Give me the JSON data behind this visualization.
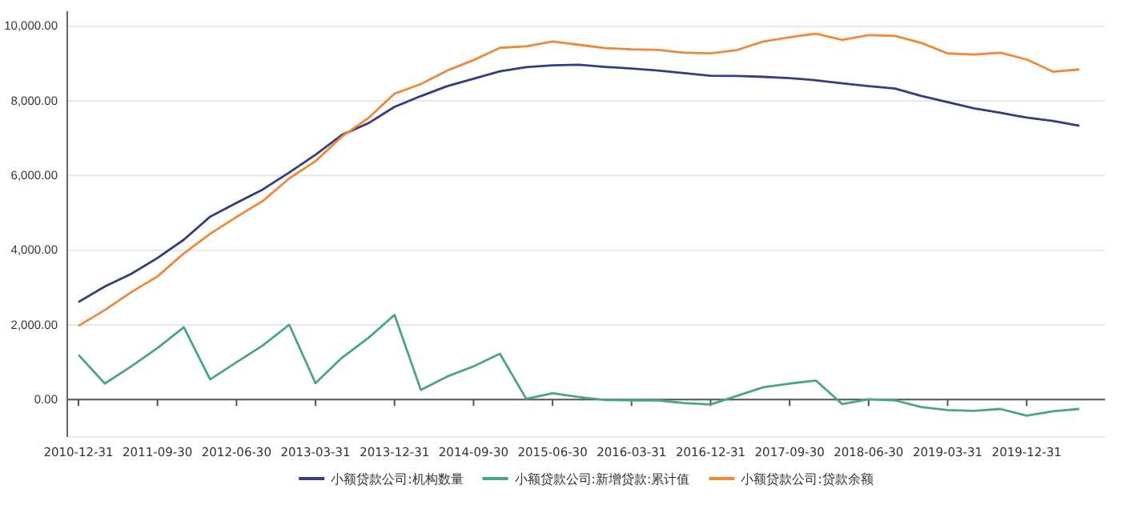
{
  "chart_data": {
    "type": "line",
    "categories": [
      "2010-12-31",
      null,
      null,
      "2011-09-30",
      null,
      null,
      "2012-06-30",
      null,
      null,
      "2013-03-31",
      null,
      null,
      "2013-12-31",
      null,
      null,
      "2014-09-30",
      null,
      null,
      "2015-06-30",
      null,
      null,
      "2016-03-31",
      null,
      null,
      "2016-12-31",
      null,
      null,
      "2017-09-30",
      null,
      null,
      "2018-06-30",
      null,
      null,
      "2019-03-31",
      null,
      null,
      "2019-12-31",
      null,
      null
    ],
    "series": [
      {
        "name": "小额贷款公司:机构数量",
        "color": "#333d7e",
        "values": [
          2614,
          3027,
          3366,
          3791,
          4282,
          4900,
          5267,
          5629,
          6080,
          6555,
          7086,
          7398,
          7839,
          8127,
          8394,
          8591,
          8791,
          8904,
          8951,
          8965,
          8910,
          8867,
          8810,
          8741,
          8673,
          8665,
          8643,
          8610,
          8551,
          8471,
          8394,
          8331,
          8133,
          7967,
          7797,
          7680,
          7551,
          7463,
          7333
        ]
      },
      {
        "name": "小额贷款公司:新增贷款:累计值",
        "color": "#4aa38f",
        "values": [
          1200,
          430,
          890,
          1380,
          1940,
          540,
          1000,
          1450,
          2005,
          440,
          1120,
          1650,
          2268,
          260,
          620,
          890,
          1228,
          20,
          170,
          70,
          -10,
          -20,
          -20,
          -90,
          -130,
          100,
          330,
          430,
          510,
          -120,
          10,
          -20,
          -200,
          -280,
          -300,
          -250,
          -430,
          -310,
          -250
        ]
      },
      {
        "name": "小额贷款公司:贷款余额",
        "color": "#f0883a",
        "values": [
          1975,
          2400,
          2875,
          3300,
          3915,
          4440,
          4890,
          5320,
          5921,
          6385,
          7043,
          7535,
          8191,
          8450,
          8811,
          9090,
          9420,
          9460,
          9590,
          9500,
          9412,
          9380,
          9365,
          9290,
          9273,
          9360,
          9590,
          9700,
          9799,
          9630,
          9760,
          9740,
          9550,
          9270,
          9240,
          9290,
          9109,
          8780,
          8841
        ]
      }
    ],
    "ylim": [
      -1000,
      10400
    ],
    "yticks": [
      {
        "value": -1000,
        "label": null
      },
      {
        "value": 0,
        "label": "0.00"
      },
      {
        "value": 2000,
        "label": "2,000.00"
      },
      {
        "value": 4000,
        "label": "4,000.00"
      },
      {
        "value": 6000,
        "label": "6,000.00"
      },
      {
        "value": 8000,
        "label": "8,000.00"
      },
      {
        "value": 10000,
        "label": "10,000.00"
      }
    ],
    "grid": "y",
    "legend": "bottom",
    "marker": "none",
    "line_style": "solid"
  }
}
